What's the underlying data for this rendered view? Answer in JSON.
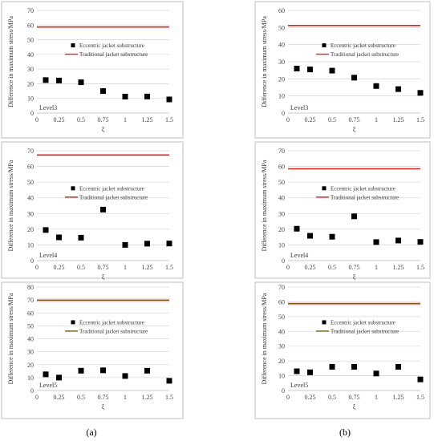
{
  "captions": [
    "(a)",
    "(b)"
  ],
  "chart_data": [
    {
      "id": "a3",
      "type": "scatter",
      "panel": "(a)",
      "level_label": "Level3",
      "xlabel": "ξ",
      "ylabel": "Difference in maximum stress/MPa",
      "xlim": [
        0,
        1.5
      ],
      "ylim": [
        0,
        70
      ],
      "x_ticks": [
        0,
        0.25,
        0.5,
        0.75,
        1,
        1.25,
        1.5
      ],
      "y_ticks": [
        0,
        10,
        20,
        30,
        40,
        50,
        60,
        70
      ],
      "legend_position": "center-right",
      "series": [
        {
          "name": "Eccentric jacket substructure",
          "kind": "scatter",
          "color": "#000000",
          "x": [
            0.1,
            0.25,
            0.5,
            0.75,
            1,
            1.25,
            1.5
          ],
          "y": [
            22.5,
            22.2,
            21,
            15,
            11.2,
            11.3,
            9.3
          ]
        },
        {
          "name": "Traditional jacket substructure",
          "kind": "line",
          "color": "#e2231a",
          "y": 58.7
        }
      ]
    },
    {
      "id": "b3",
      "type": "scatter",
      "panel": "(b)",
      "level_label": "Level3",
      "xlabel": "ξ",
      "ylabel": "Difference in maximum stress/MPa",
      "xlim": [
        0,
        1.5
      ],
      "ylim": [
        0,
        60
      ],
      "x_ticks": [
        0,
        0.25,
        0.5,
        0.75,
        1,
        1.25,
        1.5
      ],
      "y_ticks": [
        0,
        10,
        20,
        30,
        40,
        50,
        60
      ],
      "legend_position": "center-right",
      "series": [
        {
          "name": "Eccentric jacket substructure",
          "kind": "scatter",
          "color": "#000000",
          "x": [
            0.1,
            0.25,
            0.5,
            0.75,
            1,
            1.25,
            1.5
          ],
          "y": [
            26,
            25.5,
            24.8,
            20.7,
            15.8,
            14,
            11.8
          ]
        },
        {
          "name": "Traditional jacket substructure",
          "kind": "line",
          "color": "#e2231a",
          "y": 51.2
        }
      ]
    },
    {
      "id": "a4",
      "type": "scatter",
      "panel": "(a)",
      "level_label": "Level4",
      "xlabel": "ξ",
      "ylabel": "Difference in maximum stress/MPa",
      "xlim": [
        0,
        1.5
      ],
      "ylim": [
        0,
        70
      ],
      "x_ticks": [
        0,
        0.25,
        0.5,
        0.75,
        1,
        1.25,
        1.5
      ],
      "y_ticks": [
        0,
        10,
        20,
        30,
        40,
        50,
        60,
        70
      ],
      "legend_position": "center-right",
      "series": [
        {
          "name": "Eccentric jacket substructure",
          "kind": "scatter",
          "color": "#000000",
          "x": [
            0.1,
            0.25,
            0.5,
            0.75,
            1,
            1.25,
            1.5
          ],
          "y": [
            19.5,
            14.8,
            14.6,
            32.5,
            10,
            10.8,
            10.9
          ]
        },
        {
          "name": "Traditional jacket substructure",
          "kind": "line",
          "color": "#e2231a",
          "y": 67.3
        }
      ]
    },
    {
      "id": "b4",
      "type": "scatter",
      "panel": "(b)",
      "level_label": "Level4",
      "xlabel": "ξ",
      "ylabel": "Difference in maximum stress/MPa",
      "xlim": [
        0,
        1.5
      ],
      "ylim": [
        0,
        70
      ],
      "x_ticks": [
        0,
        0.25,
        0.5,
        0.75,
        1,
        1.25,
        1.5
      ],
      "y_ticks": [
        0,
        10,
        20,
        30,
        40,
        50,
        60,
        70
      ],
      "legend_position": "center-right",
      "series": [
        {
          "name": "Eccentric jacket substructure",
          "kind": "scatter",
          "color": "#000000",
          "x": [
            0.1,
            0.25,
            0.5,
            0.75,
            1,
            1.25,
            1.5
          ],
          "y": [
            20.3,
            15.8,
            15.2,
            28.2,
            11.8,
            12.8,
            11.9
          ]
        },
        {
          "name": "Traditional jacket substructure",
          "kind": "line",
          "color": "#e2231a",
          "y": 58.5
        }
      ]
    },
    {
      "id": "a5",
      "type": "scatter",
      "panel": "(a)",
      "level_label": "Level5",
      "xlabel": "ξ",
      "ylabel": "Difference in maximum stress/MPa",
      "xlim": [
        0,
        1.5
      ],
      "ylim": [
        0,
        80
      ],
      "x_ticks": [
        0,
        0.25,
        0.5,
        0.75,
        1,
        1.25,
        1.5
      ],
      "y_ticks": [
        0,
        10,
        20,
        30,
        40,
        50,
        60,
        70,
        80
      ],
      "legend_position": "center-right",
      "series": [
        {
          "name": "Eccentric jacket substructure",
          "kind": "scatter",
          "color": "#000000",
          "x": [
            0.1,
            0.25,
            0.5,
            0.75,
            1,
            1.25,
            1.5
          ],
          "y": [
            12.5,
            10,
            15.3,
            15.6,
            11.2,
            15.3,
            7.5
          ]
        },
        {
          "name": "Traditional jacket substructure",
          "kind": "line",
          "color": "#7a5a12",
          "y": 69.8
        }
      ]
    },
    {
      "id": "b5",
      "type": "scatter",
      "panel": "(b)",
      "level_label": "Level5",
      "xlabel": "ξ",
      "ylabel": "Difference in maximum stress/MPa",
      "xlim": [
        0,
        1.5
      ],
      "ylim": [
        0,
        70
      ],
      "x_ticks": [
        0,
        0.25,
        0.5,
        0.75,
        1,
        1.25,
        1.5
      ],
      "y_ticks": [
        0,
        10,
        20,
        30,
        40,
        50,
        60,
        70
      ],
      "legend_position": "center-right",
      "series": [
        {
          "name": "Eccentric jacket substructure",
          "kind": "scatter",
          "color": "#000000",
          "x": [
            0.1,
            0.25,
            0.5,
            0.75,
            1,
            1.25,
            1.5
          ],
          "y": [
            13,
            12.3,
            16,
            16,
            11.5,
            16,
            7.5
          ]
        },
        {
          "name": "Traditional jacket substructure",
          "kind": "line",
          "color": "#7a5a12",
          "y": 58.8
        }
      ]
    }
  ]
}
